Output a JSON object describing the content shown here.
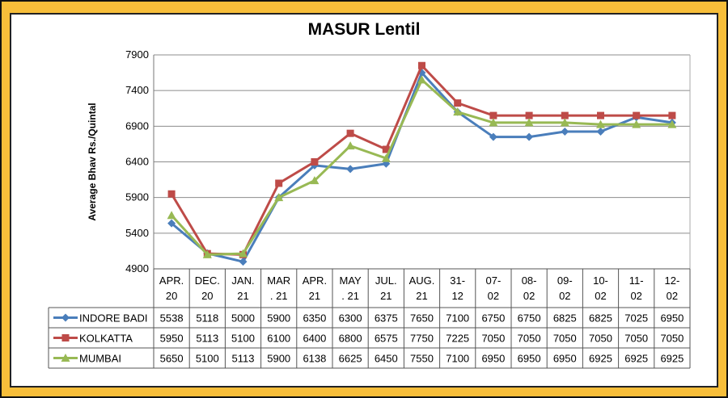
{
  "chart_data": {
    "type": "line",
    "title": "MASUR Lentil",
    "ylabel": "Average Bhav Rs./Quintal",
    "xlabel": "",
    "ylim": [
      4900,
      7900
    ],
    "yticks": [
      4900,
      5400,
      5900,
      6400,
      6900,
      7400,
      7900
    ],
    "categories": [
      [
        "APR.",
        "20"
      ],
      [
        "DEC.",
        "20"
      ],
      [
        "JAN.",
        "21"
      ],
      [
        "MAR",
        ". 21"
      ],
      [
        "APR.",
        "21"
      ],
      [
        "MAY",
        ". 21"
      ],
      [
        "JUL.",
        "21"
      ],
      [
        "AUG.",
        "21"
      ],
      [
        "31-",
        "12"
      ],
      [
        "07-",
        "02"
      ],
      [
        "08-",
        "02"
      ],
      [
        "09-",
        "02"
      ],
      [
        "10-",
        "02"
      ],
      [
        "11-",
        "02"
      ],
      [
        "12-",
        "02"
      ]
    ],
    "series": [
      {
        "name": "INDORE BADI",
        "color": "#4a7ebb",
        "marker": "diamond",
        "values": [
          5538,
          5118,
          5000,
          5900,
          6350,
          6300,
          6375,
          7650,
          7100,
          6750,
          6750,
          6825,
          6825,
          7025,
          6950
        ]
      },
      {
        "name": "KOLKATTA",
        "color": "#be4b48",
        "marker": "square",
        "values": [
          5950,
          5113,
          5100,
          6100,
          6400,
          6800,
          6575,
          7750,
          7225,
          7050,
          7050,
          7050,
          7050,
          7050,
          7050
        ]
      },
      {
        "name": "MUMBAI",
        "color": "#98b954",
        "marker": "triangle",
        "values": [
          5650,
          5100,
          5113,
          5900,
          6138,
          6625,
          6450,
          7550,
          7100,
          6950,
          6950,
          6950,
          6925,
          6925,
          6925
        ]
      }
    ],
    "grid": true,
    "legend": "data-table"
  }
}
